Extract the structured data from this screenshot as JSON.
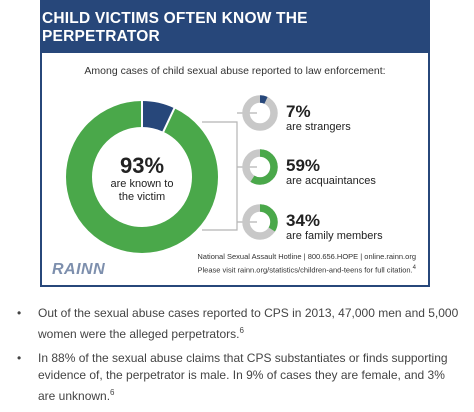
{
  "header": {
    "title": "CHILD VICTIMS OFTEN KNOW THE PERPETRATOR"
  },
  "subtitle": "Among cases of child sexual abuse reported to law enforcement:",
  "colors": {
    "green": "#4aa84a",
    "blue": "#27477a",
    "gray": "#c8c8c8"
  },
  "chart_data": [
    {
      "type": "pie",
      "variant": "donut",
      "categories": [
        "are known to the victim",
        "are strangers"
      ],
      "values": [
        93,
        7
      ],
      "labels": {
        "pct": "93%",
        "desc_line1": "are known to",
        "desc_line2": "the victim"
      }
    },
    {
      "type": "pie",
      "variant": "donut",
      "breakdown": [
        {
          "value": 7,
          "pct": "7%",
          "desc": "are strangers",
          "color": "#27477a"
        },
        {
          "value": 59,
          "pct": "59%",
          "desc": "are acquaintances",
          "color": "#4aa84a"
        },
        {
          "value": 34,
          "pct": "34%",
          "desc": "are family members",
          "color": "#4aa84a"
        }
      ]
    }
  ],
  "footer": {
    "line1": "National Sexual Assault Hotline | 800.656.HOPE | online.rainn.org",
    "line2_prefix": "Please visit ",
    "line2_link": "rainn.org/statistics/children-and-teens",
    "line2_suffix": " for full citation.",
    "line2_ref": "4"
  },
  "logo": "RAINN",
  "bullets": [
    {
      "text": "Out of the sexual abuse cases reported to CPS in 2013, 47,000 men and 5,000 women were the alleged perpetrators.",
      "ref": "6"
    },
    {
      "text": "In 88% of the sexual abuse claims that CPS substantiates or finds supporting evidence of, the perpetrator is male. In 9% of cases they are female, and 3% are unknown.",
      "ref": "6"
    }
  ]
}
